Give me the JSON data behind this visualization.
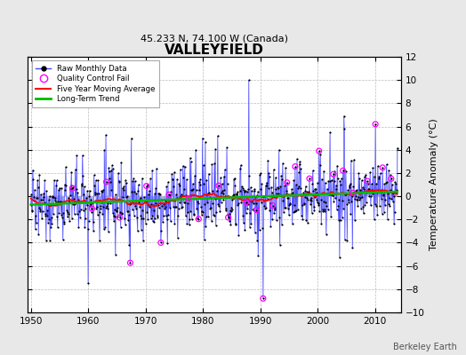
{
  "title": "VALLEYFIELD",
  "subtitle": "45.233 N, 74.100 W (Canada)",
  "ylabel": "Temperature Anomaly (°C)",
  "attribution": "Berkeley Earth",
  "ylim": [
    -10,
    12
  ],
  "yticks": [
    -10,
    -8,
    -6,
    -4,
    -2,
    0,
    2,
    4,
    6,
    8,
    10,
    12
  ],
  "xlim": [
    1949.5,
    2014.5
  ],
  "xticks": [
    1950,
    1960,
    1970,
    1980,
    1990,
    2000,
    2010
  ],
  "start_year": 1950,
  "end_year": 2013,
  "background_color": "#e8e8e8",
  "plot_bg_color": "#ffffff",
  "raw_line_color": "#4444ff",
  "raw_marker_color": "#000000",
  "qc_fail_color": "#ff00ff",
  "moving_avg_color": "#ff0000",
  "trend_color": "#00bb00",
  "seed": 12345
}
